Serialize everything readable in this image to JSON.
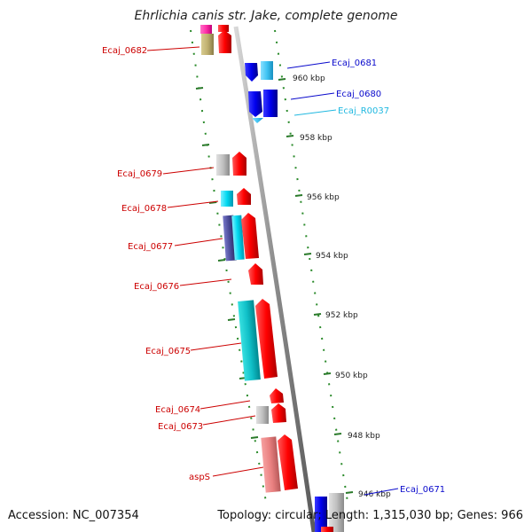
{
  "title": "Ehrlichia canis str. Jake, complete genome",
  "accession": "Accession: NC_007354",
  "topology": "Topology: circular; Length: 1,315,030 bp; Genes: 966",
  "colors": {
    "backbone": "#9a9a9a",
    "dots": "#2a8a2a",
    "tick": "#2a7a2a",
    "red_label": "#cc0000",
    "blue_label": "#0a0acc",
    "cyan_label": "#20b8e0"
  },
  "scale_ticks": [
    "960 kbp",
    "958 kbp",
    "956 kbp",
    "954 kbp",
    "952 kbp",
    "950 kbp",
    "948 kbp",
    "946 kbp"
  ],
  "gene_labels_left": [
    "Ecaj_0682",
    "Ecaj_0679",
    "Ecaj_0678",
    "Ecaj_0677",
    "Ecaj_0676",
    "Ecaj_0675",
    "Ecaj_0674",
    "Ecaj_0673",
    "aspS"
  ],
  "gene_labels_right": [
    "Ecaj_0681",
    "Ecaj_0680",
    "Ecaj_R0037",
    "Ecaj_0671"
  ]
}
